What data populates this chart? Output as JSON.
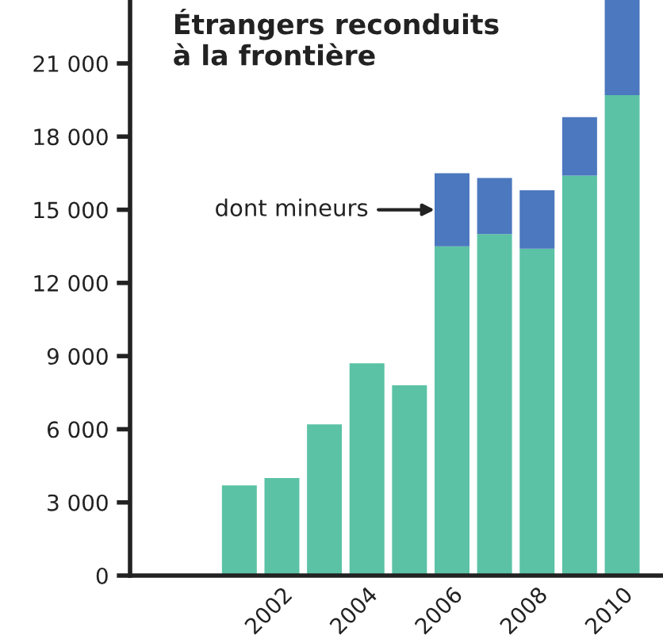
{
  "chart_data": {
    "type": "bar",
    "title": "Étrangers reconduits\nà la frontière",
    "stacked": true,
    "categories": [
      null,
      null,
      null,
      "2002",
      null,
      "2004",
      null,
      "2006",
      null,
      "2008",
      null,
      "2010"
    ],
    "series": [
      {
        "color": "#5bc2a5",
        "values": [
          null,
          null,
          3700,
          4000,
          6200,
          8700,
          7800,
          13500,
          14000,
          13400,
          16400,
          19700
        ]
      },
      {
        "color": "#4b78be",
        "values": [
          null,
          null,
          null,
          null,
          null,
          null,
          null,
          3000,
          2300,
          2400,
          2400,
          3900
        ]
      }
    ],
    "ylim": [
      0,
      23600
    ],
    "yticks": [
      0,
      {
        "value": 3000,
        "label": "3 000"
      },
      {
        "value": 6000,
        "label": "6 000"
      },
      {
        "value": 9000,
        "label": "9 000"
      },
      {
        "value": 12000,
        "label": "12 000"
      },
      {
        "value": 15000,
        "label": "15 000"
      },
      {
        "value": 18000,
        "label": "18 000"
      },
      {
        "value": 21000,
        "label": "21 000"
      }
    ],
    "annotations": [
      {
        "text": "dont mineurs",
        "x": "2006",
        "y": 15000
      }
    ],
    "grid": false,
    "legend": false
  }
}
